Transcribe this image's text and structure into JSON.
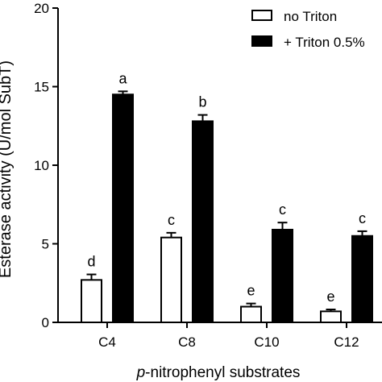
{
  "chart_data": {
    "type": "bar",
    "categories": [
      "C4",
      "C8",
      "C10",
      "C12"
    ],
    "series": [
      {
        "name": "no Triton",
        "fill": "#ffffff",
        "values": [
          2.7,
          5.4,
          1.0,
          0.7
        ],
        "errors": [
          0.35,
          0.3,
          0.2,
          0.12
        ],
        "letters": [
          "d",
          "c",
          "e",
          "e"
        ]
      },
      {
        "name": "+ Triton 0.5%",
        "fill": "#000000",
        "values": [
          14.5,
          12.8,
          5.9,
          5.5
        ],
        "errors": [
          0.2,
          0.4,
          0.45,
          0.3
        ],
        "letters": [
          "a",
          "b",
          "c",
          "c"
        ]
      }
    ],
    "xlabel_italic": "p",
    "xlabel_rest": "-nitrophenyl substrates",
    "ylabel": "Esterase activity (U/mol SubT)",
    "ylim": [
      0,
      20
    ],
    "yticks": [
      0,
      5,
      10,
      15,
      20
    ],
    "grid": false,
    "legend_position": "top-right"
  }
}
